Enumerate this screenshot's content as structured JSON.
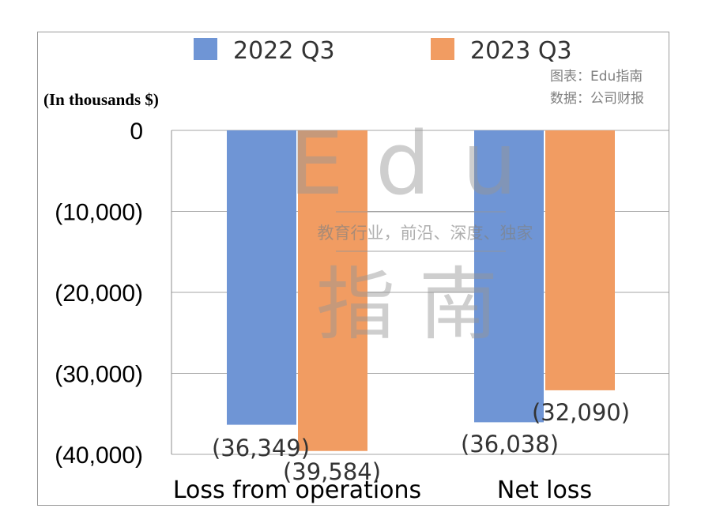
{
  "chart_data": {
    "type": "bar",
    "title": "",
    "unit_label": "(In thousands $)",
    "categories": [
      "Loss from operations",
      "Net loss"
    ],
    "series": [
      {
        "name": "2022 Q3",
        "color": "#6f95d5",
        "values": [
          -36349,
          -36038
        ],
        "labels": [
          "(36,349)",
          "(36,038)"
        ]
      },
      {
        "name": "2023 Q3",
        "color": "#f19c62",
        "values": [
          -39584,
          -32090
        ],
        "labels": [
          "(39,584)",
          "(32,090)"
        ]
      }
    ],
    "ylim": [
      -40000,
      0
    ],
    "yticks": [
      0,
      -10000,
      -20000,
      -30000,
      -40000
    ],
    "ytick_labels": [
      "0",
      "(10,000)",
      "(20,000)",
      "(30,000)",
      "(40,000)"
    ],
    "grid": true,
    "legend_position": "top-center"
  },
  "source_note": {
    "line1": "图表：Edu指南",
    "line2": "数据：公司财报"
  },
  "watermark": {
    "top": "Edu",
    "middle": "教育行业，前沿、深度、独家",
    "bottom": "指南"
  }
}
